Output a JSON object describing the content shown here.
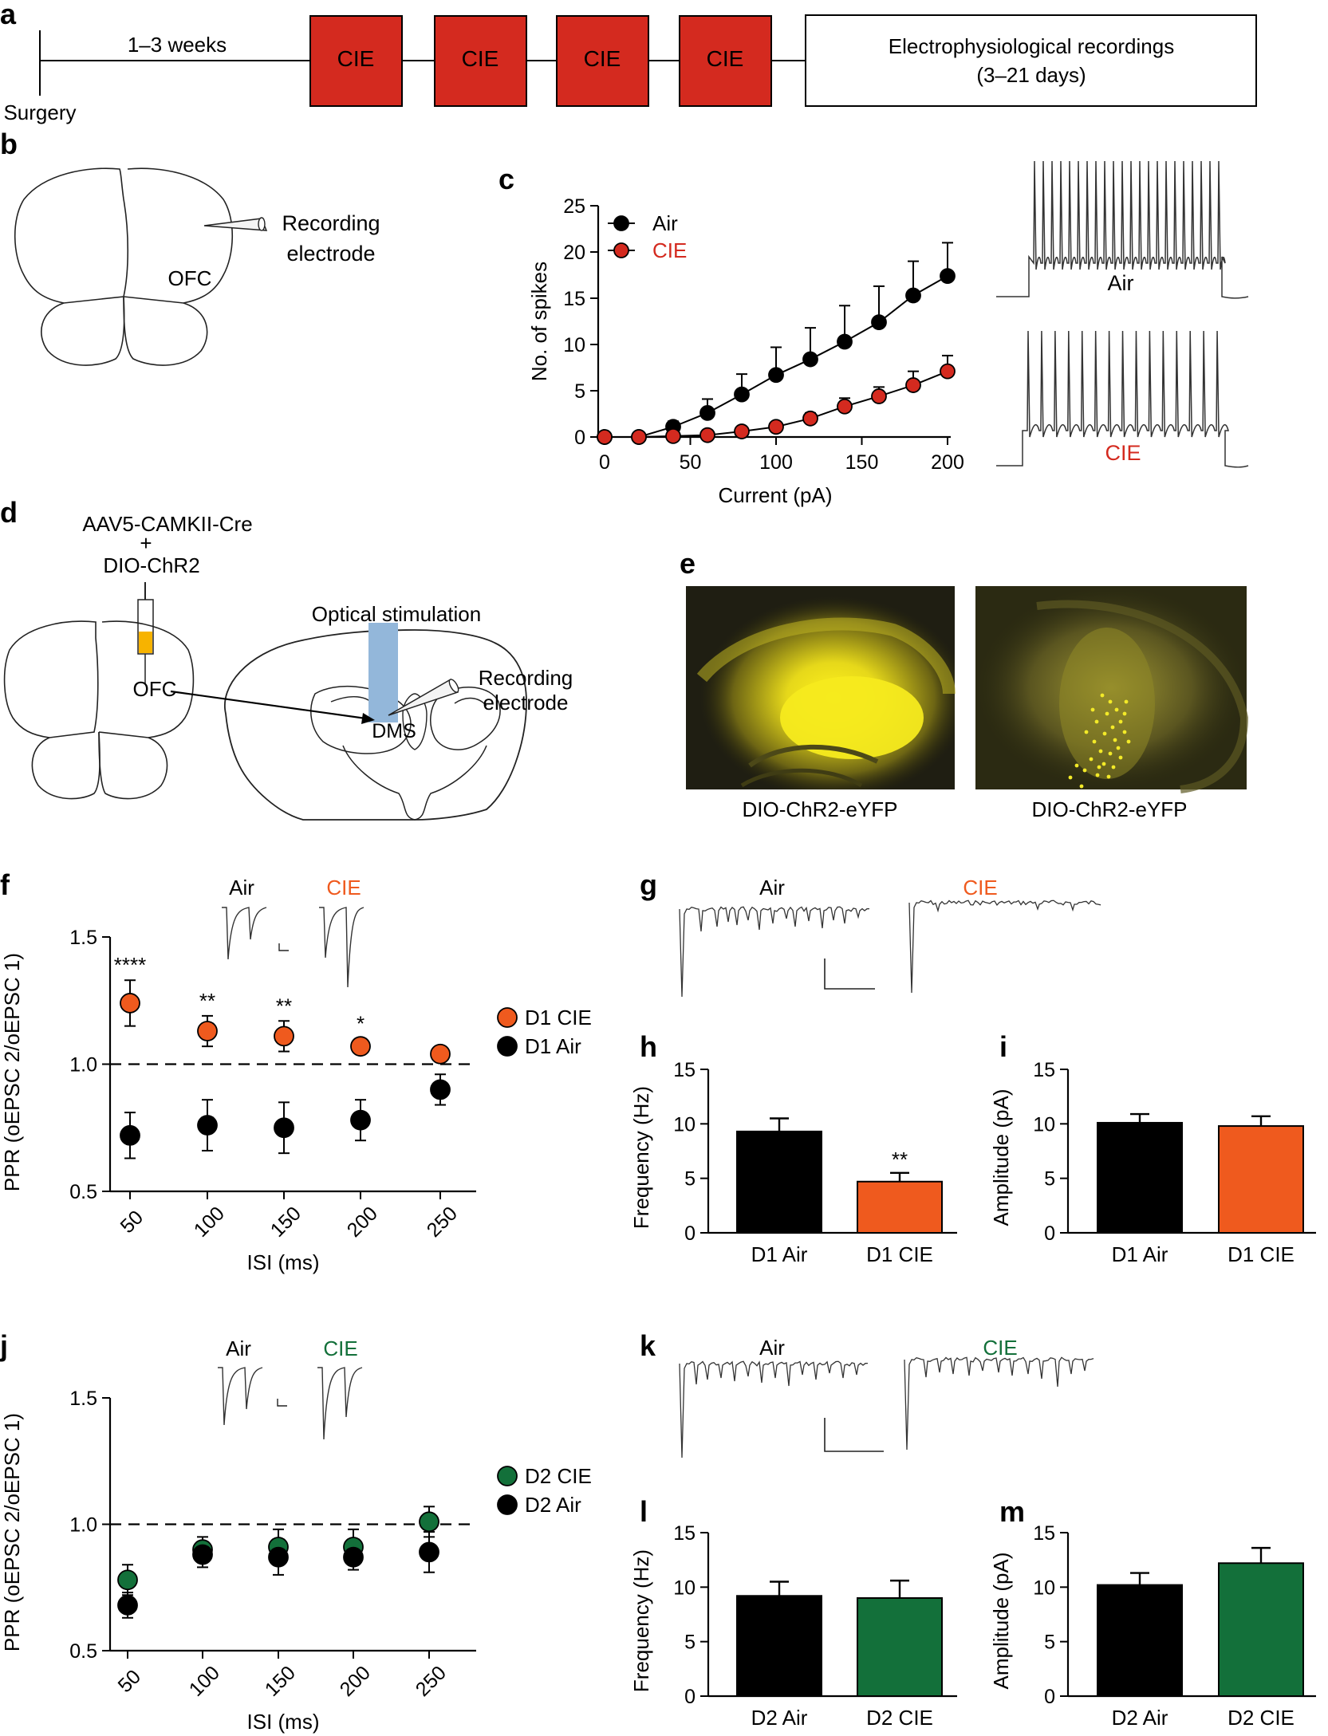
{
  "panel_letters": [
    "a",
    "b",
    "c",
    "d",
    "e",
    "f",
    "g",
    "h",
    "i",
    "j",
    "k",
    "l",
    "m"
  ],
  "colors": {
    "cie": "#d42a1f",
    "d1_cie": "#ef5a1e",
    "d2_cie": "#13703a",
    "air": "#000000",
    "blue_light": "#93b7da",
    "yfp": "#f0e41c",
    "virus": "#f7b300"
  },
  "panel_a": {
    "interval_label": "1–3 weeks",
    "surgery_label": "Surgery",
    "cie_blocks": [
      "CIE",
      "CIE",
      "CIE",
      "CIE"
    ],
    "recording_line1": "Electrophysiological recordings",
    "recording_line2": "(3–21 days)"
  },
  "panel_b": {
    "region_label": "OFC",
    "electrode_line1": "Recording",
    "electrode_line2": "electrode"
  },
  "panel_c": {
    "trace_air_label": "Air",
    "trace_cie_label": "CIE"
  },
  "panel_d": {
    "virus_line1": "AAV5-CAMKII-Cre",
    "virus_plus": "+",
    "virus_line2": "DIO-ChR2",
    "source_label": "OFC",
    "stim_label": "Optical stimulation",
    "electrode_line1": "Recording",
    "electrode_line2": "electrode",
    "target_label": "DMS"
  },
  "panel_e": {
    "image1_caption": "DIO-ChR2-eYFP",
    "image2_caption": "DIO-ChR2-eYFP"
  },
  "panel_f": {
    "inset_air_label": "Air",
    "inset_cie_label": "CIE"
  },
  "panel_g": {
    "trace_air_label": "Air",
    "trace_cie_label": "CIE"
  },
  "panel_j": {
    "inset_air_label": "Air",
    "inset_cie_label": "CIE"
  },
  "panel_k": {
    "trace_air_label": "Air",
    "trace_cie_label": "CIE"
  },
  "chart_data": [
    {
      "id": "c",
      "type": "line",
      "xlabel": "Current (pA)",
      "ylabel": "No. of spikes",
      "xlim": [
        0,
        200
      ],
      "ylim": [
        0,
        25
      ],
      "xticks": [
        0,
        50,
        100,
        150,
        200
      ],
      "yticks": [
        0,
        5,
        10,
        15,
        20,
        25
      ],
      "x": [
        0,
        20,
        40,
        60,
        80,
        100,
        120,
        140,
        160,
        180,
        200
      ],
      "series": [
        {
          "name": "Air",
          "color": "#000000",
          "values": [
            0,
            0,
            1.1,
            2.6,
            4.6,
            6.7,
            8.4,
            10.3,
            12.4,
            15.3,
            17.4
          ],
          "errors": [
            0,
            0,
            0.6,
            1.5,
            2.2,
            3.0,
            3.4,
            3.9,
            3.9,
            3.7,
            3.6
          ]
        },
        {
          "name": "CIE",
          "color": "#d42a1f",
          "values": [
            0,
            0,
            0.1,
            0.2,
            0.6,
            1.1,
            2.0,
            3.3,
            4.4,
            5.6,
            7.1
          ],
          "errors": [
            0,
            0,
            0.1,
            0.2,
            0.3,
            0.5,
            0.6,
            0.9,
            1.0,
            1.5,
            1.7
          ]
        }
      ],
      "legend": "top-left"
    },
    {
      "id": "f",
      "type": "scatter",
      "xlabel": "ISI (ms)",
      "ylabel": "PPR (oEPSC 2/oEPSC 1)",
      "ylim": [
        0.5,
        1.5
      ],
      "yticks": [
        0.5,
        1.0,
        1.5
      ],
      "ytick_labels": [
        "0.5",
        "1.0",
        "1.5"
      ],
      "categories": [
        "50",
        "100",
        "150",
        "200",
        "250"
      ],
      "reference_line": 1.0,
      "series": [
        {
          "name": "D1 CIE",
          "color": "#ef5a1e",
          "values": [
            1.24,
            1.13,
            1.11,
            1.07,
            1.04
          ],
          "errors": [
            0.09,
            0.06,
            0.06,
            0.03,
            0.03
          ],
          "annotations": [
            "****",
            "**",
            "**",
            "*",
            ""
          ]
        },
        {
          "name": "D1 Air",
          "color": "#000000",
          "values": [
            0.72,
            0.76,
            0.75,
            0.78,
            0.9
          ],
          "errors": [
            0.09,
            0.1,
            0.1,
            0.08,
            0.06
          ]
        }
      ],
      "legend": "right"
    },
    {
      "id": "h",
      "type": "bar",
      "ylabel": "Frequency (Hz)",
      "ylim": [
        0,
        15
      ],
      "yticks": [
        0,
        5,
        10,
        15
      ],
      "categories": [
        "D1 Air",
        "D1 CIE"
      ],
      "values": [
        9.3,
        4.7
      ],
      "errors": [
        1.2,
        0.8
      ],
      "colors": [
        "#000000",
        "#ef5a1e"
      ],
      "annotations": [
        "",
        "**"
      ]
    },
    {
      "id": "i",
      "type": "bar",
      "ylabel": "Amplitude (pA)",
      "ylim": [
        0,
        15
      ],
      "yticks": [
        0,
        5,
        10,
        15
      ],
      "categories": [
        "D1 Air",
        "D1 CIE"
      ],
      "values": [
        10.1,
        9.8
      ],
      "errors": [
        0.8,
        0.9
      ],
      "colors": [
        "#000000",
        "#ef5a1e"
      ],
      "annotations": [
        "",
        ""
      ]
    },
    {
      "id": "j",
      "type": "scatter",
      "xlabel": "ISI (ms)",
      "ylabel": "PPR (oEPSC 2/oEPSC 1)",
      "ylim": [
        0.5,
        1.5
      ],
      "yticks": [
        0.5,
        1.0,
        1.5
      ],
      "ytick_labels": [
        "0.5",
        "1.0",
        "1.5"
      ],
      "categories": [
        "50",
        "100",
        "150",
        "200",
        "250"
      ],
      "reference_line": 1.0,
      "series": [
        {
          "name": "D2 CIE",
          "color": "#13703a",
          "values": [
            0.78,
            0.9,
            0.91,
            0.91,
            1.01
          ],
          "errors": [
            0.06,
            0.05,
            0.07,
            0.07,
            0.06
          ]
        },
        {
          "name": "D2 Air",
          "color": "#000000",
          "values": [
            0.68,
            0.88,
            0.87,
            0.87,
            0.89
          ],
          "errors": [
            0.05,
            0.05,
            0.07,
            0.05,
            0.08
          ]
        }
      ],
      "legend": "right"
    },
    {
      "id": "l",
      "type": "bar",
      "ylabel": "Frequency (Hz)",
      "ylim": [
        0,
        15
      ],
      "yticks": [
        0,
        5,
        10,
        15
      ],
      "categories": [
        "D2 Air",
        "D2 CIE"
      ],
      "values": [
        9.2,
        9.0
      ],
      "errors": [
        1.3,
        1.6
      ],
      "colors": [
        "#000000",
        "#13703a"
      ],
      "annotations": [
        "",
        ""
      ]
    },
    {
      "id": "m",
      "type": "bar",
      "ylabel": "Amplitude (pA)",
      "ylim": [
        0,
        15
      ],
      "yticks": [
        0,
        5,
        10,
        15
      ],
      "categories": [
        "D2 Air",
        "D2 CIE"
      ],
      "values": [
        10.2,
        12.2
      ],
      "errors": [
        1.1,
        1.4
      ],
      "colors": [
        "#000000",
        "#13703a"
      ],
      "annotations": [
        "",
        ""
      ]
    }
  ]
}
